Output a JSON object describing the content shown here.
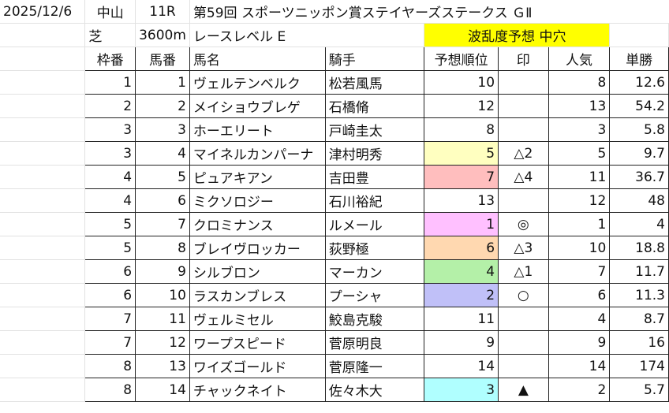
{
  "info": {
    "date": "2025/12/6",
    "venue": "中山",
    "race_no": "11R",
    "race_name": "第59回 スポーツニッポン賞ステイヤーズステークス ＧⅡ",
    "surface": "芝",
    "distance": "3600m",
    "level": "レースレベル E",
    "forecast_label": "波乱度予想 中穴"
  },
  "headers": [
    "枠番",
    "馬番",
    "馬名",
    "騎手",
    "予想順位",
    "印",
    "人気",
    "単勝"
  ],
  "rows": [
    {
      "waku": "1",
      "uma": "1",
      "name": "ヴェルテンベルク",
      "jockey": "松若風馬",
      "rank": "10",
      "mark": "",
      "ninki": "8",
      "odds": "12.6",
      "color": ""
    },
    {
      "waku": "2",
      "uma": "2",
      "name": "メイショウブレゲ",
      "jockey": "石橋脩",
      "rank": "12",
      "mark": "",
      "ninki": "13",
      "odds": "54.2",
      "color": ""
    },
    {
      "waku": "3",
      "uma": "3",
      "name": "ホーエリート",
      "jockey": "戸崎圭太",
      "rank": "8",
      "mark": "",
      "ninki": "3",
      "odds": "5.8",
      "color": ""
    },
    {
      "waku": "3",
      "uma": "4",
      "name": "マイネルカンパーナ",
      "jockey": "津村明秀",
      "rank": "5",
      "mark": "△2",
      "ninki": "5",
      "odds": "9.7",
      "color": "#ffffc0"
    },
    {
      "waku": "4",
      "uma": "5",
      "name": "ピュアキアン",
      "jockey": "吉田豊",
      "rank": "7",
      "mark": "△4",
      "ninki": "11",
      "odds": "36.7",
      "color": "#ffbebe"
    },
    {
      "waku": "4",
      "uma": "6",
      "name": "ミクソロジー",
      "jockey": "石川裕紀",
      "rank": "13",
      "mark": "",
      "ninki": "12",
      "odds": "48",
      "color": ""
    },
    {
      "waku": "5",
      "uma": "7",
      "name": "クロミナンス",
      "jockey": "ルメール",
      "rank": "1",
      "mark": "◎",
      "ninki": "1",
      "odds": "4",
      "color": "#ffc0ff"
    },
    {
      "waku": "5",
      "uma": "8",
      "name": "ブレイヴロッカー",
      "jockey": "荻野極",
      "rank": "6",
      "mark": "△3",
      "ninki": "10",
      "odds": "18.8",
      "color": "#ffd8b0"
    },
    {
      "waku": "6",
      "uma": "9",
      "name": "シルブロン",
      "jockey": "マーカン",
      "rank": "4",
      "mark": "△1",
      "ninki": "7",
      "odds": "11.7",
      "color": "#b4f0a8"
    },
    {
      "waku": "6",
      "uma": "10",
      "name": "ラスカンブレス",
      "jockey": "プーシャ",
      "rank": "2",
      "mark": "○",
      "ninki": "6",
      "odds": "11.3",
      "color": "#c0c0f8"
    },
    {
      "waku": "7",
      "uma": "11",
      "name": "ヴェルミセル",
      "jockey": "鮫島克駿",
      "rank": "11",
      "mark": "",
      "ninki": "4",
      "odds": "8.7",
      "color": ""
    },
    {
      "waku": "7",
      "uma": "12",
      "name": "ワープスピード",
      "jockey": "菅原明良",
      "rank": "9",
      "mark": "",
      "ninki": "9",
      "odds": "16",
      "color": ""
    },
    {
      "waku": "8",
      "uma": "13",
      "name": "ワイズゴールド",
      "jockey": "菅原隆一",
      "rank": "14",
      "mark": "",
      "ninki": "14",
      "odds": "174",
      "color": ""
    },
    {
      "waku": "8",
      "uma": "14",
      "name": "チャックネイト",
      "jockey": "佐々木大",
      "rank": "3",
      "mark": "▲",
      "ninki": "2",
      "odds": "5.7",
      "color": "#b0ffff"
    }
  ]
}
